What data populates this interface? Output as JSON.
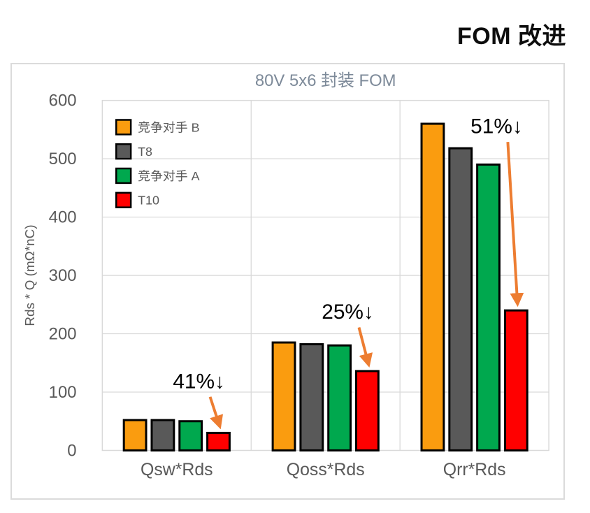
{
  "page": {
    "header_title": "FOM 改进"
  },
  "chart_data": {
    "type": "bar",
    "title": "80V 5x6 封装 FOM",
    "xlabel": "",
    "ylabel": "Rds * Q (mΩ*nC)",
    "categories": [
      "Qsw*Rds",
      "Qoss*Rds",
      "Qrr*Rds"
    ],
    "series": [
      {
        "name": "竞争对手 B",
        "color": "#FA9C0F",
        "values": [
          52,
          185,
          560
        ]
      },
      {
        "name": "T8",
        "color": "#595959",
        "values": [
          52,
          182,
          518
        ]
      },
      {
        "name": "竞争对手 A",
        "color": "#00A84E",
        "values": [
          50,
          180,
          490
        ]
      },
      {
        "name": "T10",
        "color": "#FF0000",
        "values": [
          30,
          136,
          240
        ]
      }
    ],
    "ylim": [
      0,
      600
    ],
    "ytick_step": 100,
    "grid": true,
    "legend_position": "top-left-inside",
    "annotations": [
      {
        "text": "41%↓",
        "category_index": 0,
        "target_series": "T10",
        "label_value": 118
      },
      {
        "text": "25%↓",
        "category_index": 1,
        "target_series": "T10",
        "label_value": 237
      },
      {
        "text": "51%↓",
        "category_index": 2,
        "target_series": "T10",
        "label_value": 555
      }
    ],
    "colors": {
      "annotation_text": "#000000",
      "annotation_arrow": "#ED7D31",
      "bar_border": "#000000",
      "axis_text": "#595959",
      "title_text": "#7D8A99",
      "grid_line": "#D9D9D9"
    }
  }
}
